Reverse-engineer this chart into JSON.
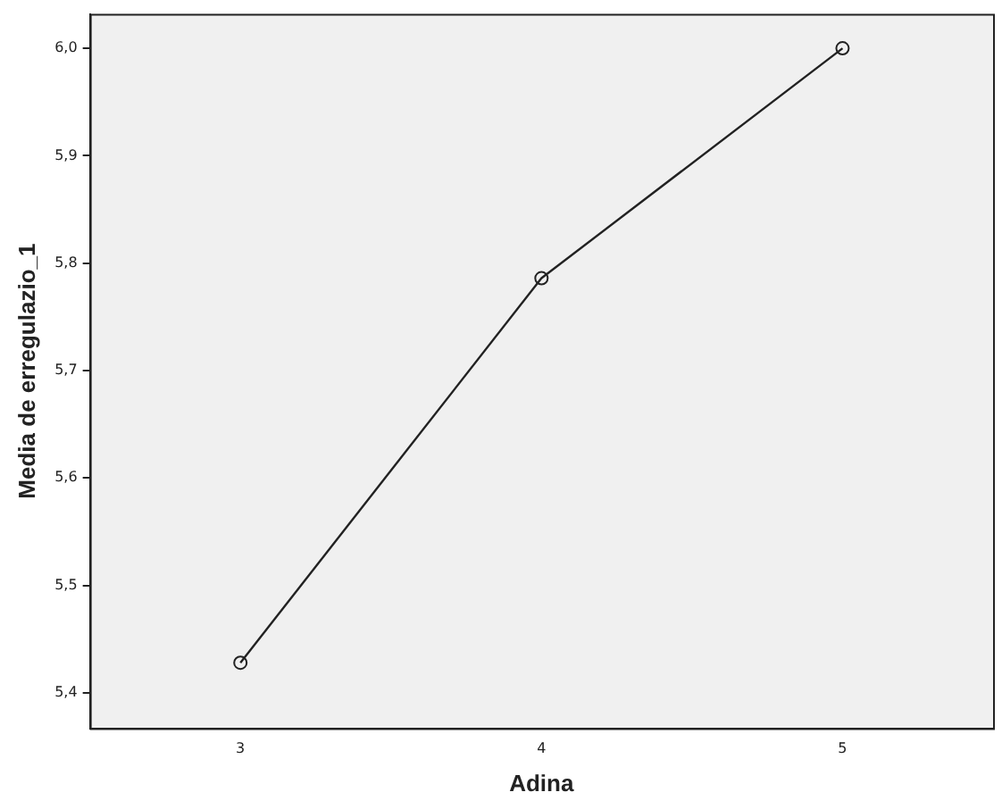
{
  "chart_data": {
    "type": "line",
    "xlabel": "Adina",
    "ylabel": "Media de erregulazio_1",
    "categories": [
      "3",
      "4",
      "5"
    ],
    "series": [
      {
        "color": "#222222",
        "values": [
          5.428,
          5.786,
          6.0
        ]
      }
    ],
    "ylim": [
      5.367,
      6.032
    ],
    "yticks": [
      {
        "value": 5.4,
        "label": "5,4"
      },
      {
        "value": 5.5,
        "label": "5,5"
      },
      {
        "value": 5.6,
        "label": "5,6"
      },
      {
        "value": 5.7,
        "label": "5,7"
      },
      {
        "value": 5.8,
        "label": "5,8"
      },
      {
        "value": 5.9,
        "label": "5,9"
      },
      {
        "value": 6.0,
        "label": "6,0"
      }
    ],
    "grid": false,
    "legend": false,
    "marker": "circle",
    "line_style": "solid"
  }
}
